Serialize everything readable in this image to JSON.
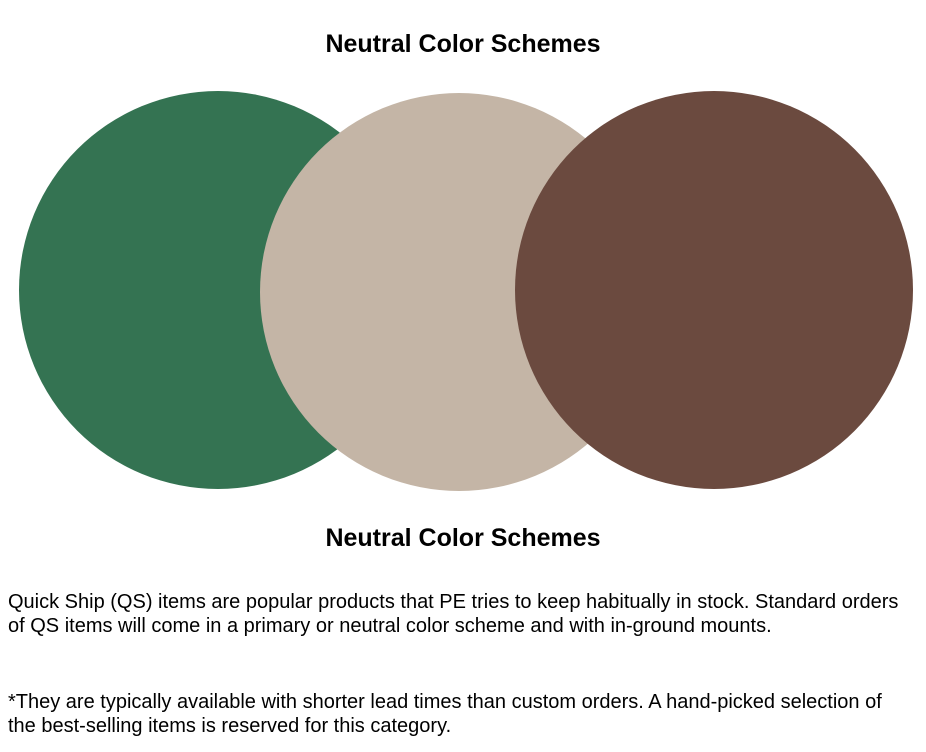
{
  "heading_top": "Neutral Color Schemes",
  "heading_bottom": "Neutral Color Schemes",
  "swatches": [
    {
      "name": "green",
      "color": "#347352"
    },
    {
      "name": "beige",
      "color": "#c4b5a6"
    },
    {
      "name": "brown",
      "color": "#6b4a3f"
    }
  ],
  "paragraphs": [
    "Quick Ship (QS) items are popular products that PE tries to keep habitually in stock. Standard orders of QS items will come in a primary or neutral color scheme and with in-ground mounts.",
    "*They are typically available with shorter lead times than custom orders. A hand-picked selection of the best-selling items is reserved for this category."
  ]
}
